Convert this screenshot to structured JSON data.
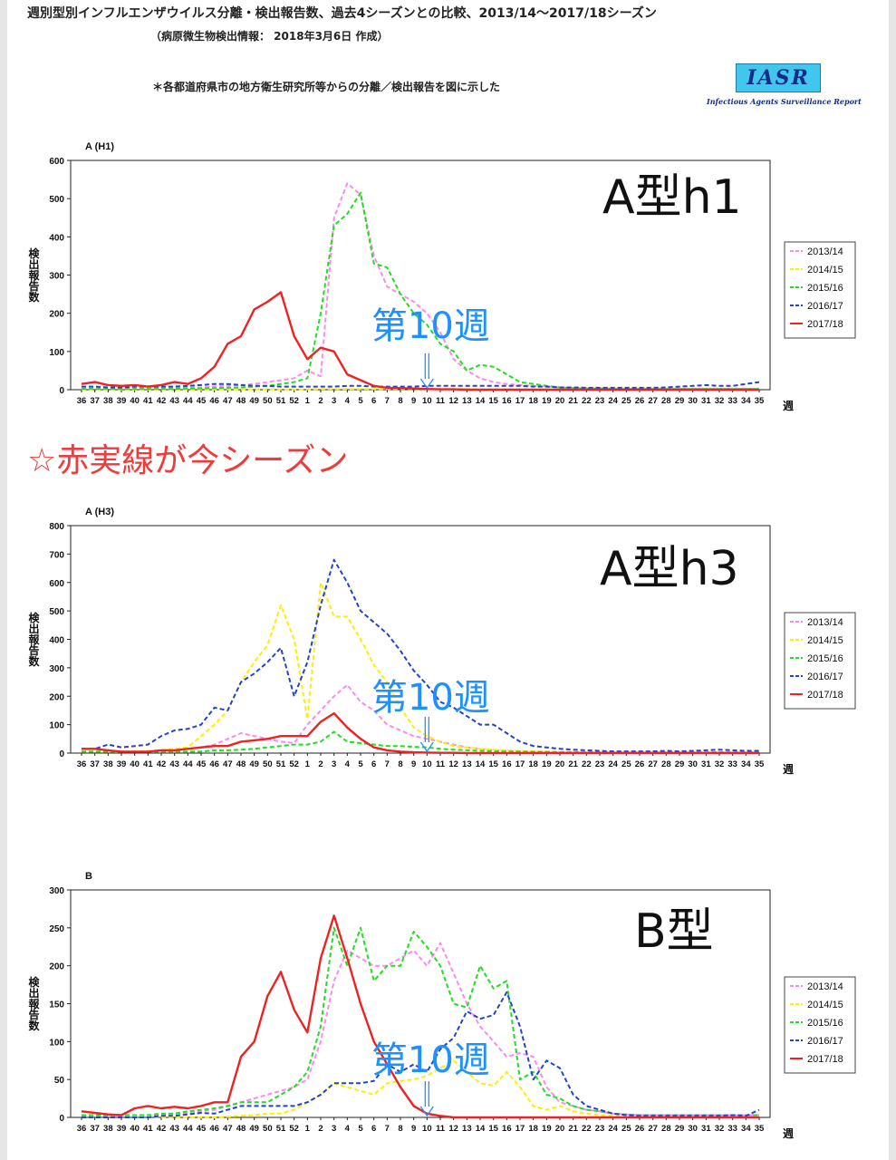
{
  "header": {
    "title": "週別型別インフルエンザウイルス分離・検出報告数、過去4シーズンとの比較、2013/14～2017/18シーズン",
    "subtitle": "（病原微生物検出情報： 2018年3月6日 作成）",
    "note": "＊各都道府県市の地方衛生研究所等からの分離／検出報告を図に示した"
  },
  "logo": {
    "text": "IASR",
    "caption": "Infectious Agents Surveillance Report"
  },
  "annotation": "☆赤実線が今シーズン",
  "colors": {
    "2013/14": "#ff88ee",
    "2014/15": "#ffee00",
    "2015/16": "#22dd22",
    "2016/17": "#2244cc",
    "2017/18": "#ee2222",
    "overlay_blue": "#1e90ff",
    "overlay_black": "#111111"
  },
  "chart_data": [
    {
      "type": "line",
      "title": "A (H1)",
      "ylabel": "検出報告数",
      "xlabel": "週",
      "overlay_label": "A型h1",
      "marker_label": "第10週",
      "marker_week": "10",
      "ylim": [
        0,
        600
      ],
      "yticks": [
        0,
        100,
        200,
        300,
        400,
        500,
        600
      ],
      "x": [
        "36",
        "37",
        "38",
        "39",
        "40",
        "41",
        "42",
        "43",
        "44",
        "45",
        "46",
        "47",
        "48",
        "49",
        "50",
        "51",
        "52",
        "1",
        "2",
        "3",
        "4",
        "5",
        "6",
        "7",
        "8",
        "9",
        "10",
        "11",
        "12",
        "13",
        "14",
        "15",
        "16",
        "17",
        "18",
        "19",
        "20",
        "21",
        "22",
        "23",
        "24",
        "25",
        "26",
        "27",
        "28",
        "29",
        "30",
        "31",
        "32",
        "33",
        "34",
        "35"
      ],
      "series": [
        {
          "name": "2013/14",
          "values": [
            3,
            3,
            3,
            3,
            3,
            3,
            4,
            4,
            5,
            6,
            8,
            10,
            12,
            15,
            20,
            25,
            30,
            50,
            35,
            450,
            540,
            510,
            350,
            270,
            250,
            230,
            200,
            150,
            80,
            50,
            30,
            20,
            15,
            12,
            10,
            8,
            6,
            5,
            4,
            4,
            3,
            3,
            3,
            3,
            3,
            3,
            3,
            3,
            3,
            3,
            3,
            3
          ]
        },
        {
          "name": "2014/15",
          "values": [
            1,
            1,
            1,
            1,
            1,
            1,
            1,
            1,
            1,
            1,
            1,
            1,
            1,
            1,
            1,
            1,
            1,
            1,
            2,
            2,
            2,
            2,
            2,
            2,
            2,
            2,
            2,
            2,
            2,
            2,
            1,
            1,
            1,
            1,
            1,
            1,
            1,
            1,
            1,
            1,
            1,
            1,
            1,
            1,
            1,
            1,
            1,
            1,
            1,
            1,
            1,
            1
          ]
        },
        {
          "name": "2015/16",
          "values": [
            2,
            2,
            2,
            2,
            2,
            2,
            2,
            2,
            3,
            3,
            4,
            5,
            6,
            8,
            10,
            15,
            20,
            30,
            200,
            430,
            460,
            515,
            330,
            320,
            250,
            200,
            170,
            120,
            100,
            50,
            65,
            60,
            40,
            20,
            15,
            10,
            6,
            4,
            3,
            3,
            2,
            2,
            2,
            2,
            2,
            2,
            2,
            2,
            2,
            2,
            2,
            2
          ]
        },
        {
          "name": "2016/17",
          "values": [
            8,
            8,
            6,
            6,
            8,
            8,
            8,
            8,
            10,
            12,
            15,
            15,
            12,
            10,
            10,
            8,
            8,
            8,
            8,
            8,
            10,
            10,
            8,
            8,
            8,
            8,
            10,
            10,
            10,
            10,
            10,
            10,
            10,
            10,
            8,
            8,
            6,
            6,
            5,
            5,
            5,
            5,
            5,
            5,
            6,
            8,
            10,
            12,
            10,
            10,
            15,
            20
          ]
        },
        {
          "name": "2017/18",
          "values": [
            15,
            20,
            12,
            10,
            12,
            8,
            12,
            20,
            15,
            30,
            60,
            120,
            140,
            210,
            230,
            255,
            140,
            80,
            110,
            100,
            40,
            25,
            10,
            5,
            4,
            3,
            2,
            1,
            1,
            0,
            0,
            0,
            0,
            0,
            0,
            0,
            0,
            0,
            0,
            0,
            0,
            0,
            0,
            0,
            0,
            0,
            0,
            0,
            0,
            0,
            0,
            0
          ]
        }
      ]
    },
    {
      "type": "line",
      "title": "A (H3)",
      "ylabel": "検出報告数",
      "xlabel": "週",
      "overlay_label": "A型h3",
      "marker_label": "第10週",
      "marker_week": "10",
      "ylim": [
        0,
        800
      ],
      "yticks": [
        0,
        100,
        200,
        300,
        400,
        500,
        600,
        700,
        800
      ],
      "x": [
        "36",
        "37",
        "38",
        "39",
        "40",
        "41",
        "42",
        "43",
        "44",
        "45",
        "46",
        "47",
        "48",
        "49",
        "50",
        "51",
        "52",
        "1",
        "2",
        "3",
        "4",
        "5",
        "6",
        "7",
        "8",
        "9",
        "10",
        "11",
        "12",
        "13",
        "14",
        "15",
        "16",
        "17",
        "18",
        "19",
        "20",
        "21",
        "22",
        "23",
        "24",
        "25",
        "26",
        "27",
        "28",
        "29",
        "30",
        "31",
        "32",
        "33",
        "34",
        "35"
      ],
      "series": [
        {
          "name": "2013/14",
          "values": [
            5,
            5,
            5,
            5,
            5,
            5,
            8,
            10,
            15,
            20,
            30,
            50,
            70,
            60,
            50,
            40,
            35,
            100,
            150,
            200,
            240,
            180,
            150,
            100,
            80,
            60,
            50,
            40,
            30,
            20,
            15,
            10,
            8,
            6,
            5,
            5,
            4,
            4,
            3,
            3,
            3,
            3,
            3,
            3,
            3,
            3,
            3,
            3,
            3,
            3,
            3,
            3
          ]
        },
        {
          "name": "2014/15",
          "values": [
            5,
            5,
            5,
            5,
            5,
            8,
            10,
            15,
            20,
            60,
            100,
            150,
            250,
            320,
            380,
            520,
            400,
            120,
            600,
            480,
            480,
            400,
            310,
            250,
            160,
            90,
            60,
            40,
            25,
            20,
            15,
            12,
            10,
            8,
            6,
            5,
            4,
            4,
            3,
            3,
            3,
            3,
            3,
            3,
            3,
            3,
            3,
            3,
            3,
            3,
            3,
            3
          ]
        },
        {
          "name": "2015/16",
          "values": [
            5,
            5,
            5,
            5,
            5,
            5,
            5,
            5,
            5,
            5,
            10,
            10,
            12,
            15,
            20,
            25,
            30,
            30,
            40,
            75,
            40,
            35,
            30,
            25,
            25,
            22,
            20,
            15,
            12,
            10,
            8,
            6,
            5,
            5,
            4,
            4,
            3,
            3,
            3,
            3,
            3,
            3,
            3,
            3,
            3,
            3,
            3,
            3,
            3,
            3,
            3,
            3
          ]
        },
        {
          "name": "2016/17",
          "values": [
            15,
            15,
            30,
            20,
            25,
            30,
            60,
            80,
            85,
            100,
            160,
            150,
            250,
            280,
            320,
            370,
            200,
            320,
            520,
            680,
            600,
            500,
            460,
            420,
            360,
            290,
            240,
            180,
            160,
            130,
            100,
            100,
            70,
            40,
            25,
            20,
            15,
            12,
            10,
            8,
            6,
            6,
            6,
            6,
            8,
            6,
            8,
            10,
            12,
            10,
            8,
            8
          ]
        },
        {
          "name": "2017/18",
          "values": [
            15,
            15,
            10,
            5,
            5,
            5,
            10,
            10,
            15,
            20,
            25,
            25,
            40,
            45,
            50,
            60,
            60,
            60,
            110,
            140,
            90,
            50,
            20,
            10,
            5,
            3,
            2,
            1,
            1,
            0,
            0,
            0,
            0,
            0,
            0,
            0,
            0,
            0,
            0,
            0,
            0,
            0,
            0,
            0,
            0,
            0,
            0,
            0,
            0,
            0,
            0,
            0
          ]
        }
      ]
    },
    {
      "type": "line",
      "title": "B",
      "ylabel": "検出報告数",
      "xlabel": "週",
      "overlay_label": "B型",
      "marker_label": "第10週",
      "marker_week": "10",
      "ylim": [
        0,
        300
      ],
      "yticks": [
        0,
        50,
        100,
        150,
        200,
        250,
        300
      ],
      "x": [
        "36",
        "37",
        "38",
        "39",
        "40",
        "41",
        "42",
        "43",
        "44",
        "45",
        "46",
        "47",
        "48",
        "49",
        "50",
        "51",
        "52",
        "1",
        "2",
        "3",
        "4",
        "5",
        "6",
        "7",
        "8",
        "9",
        "10",
        "11",
        "12",
        "13",
        "14",
        "15",
        "16",
        "17",
        "18",
        "19",
        "20",
        "21",
        "22",
        "23",
        "24",
        "25",
        "26",
        "27",
        "28",
        "29",
        "30",
        "31",
        "32",
        "33",
        "34",
        "35"
      ],
      "series": [
        {
          "name": "2013/14",
          "values": [
            2,
            2,
            2,
            2,
            3,
            3,
            4,
            5,
            6,
            8,
            10,
            15,
            20,
            25,
            30,
            35,
            40,
            50,
            100,
            180,
            220,
            210,
            200,
            200,
            210,
            220,
            200,
            230,
            190,
            150,
            120,
            100,
            80,
            85,
            80,
            40,
            20,
            15,
            10,
            8,
            5,
            4,
            3,
            3,
            3,
            3,
            3,
            3,
            3,
            3,
            3,
            3
          ]
        },
        {
          "name": "2014/15",
          "values": [
            0,
            0,
            0,
            0,
            0,
            0,
            0,
            0,
            0,
            0,
            0,
            1,
            2,
            3,
            5,
            5,
            10,
            20,
            30,
            45,
            40,
            35,
            30,
            45,
            48,
            50,
            55,
            65,
            75,
            60,
            45,
            42,
            60,
            40,
            15,
            10,
            15,
            8,
            5,
            3,
            2,
            1,
            1,
            1,
            0,
            0,
            0,
            0,
            0,
            0,
            0,
            0
          ]
        },
        {
          "name": "2015/16",
          "values": [
            3,
            3,
            3,
            3,
            3,
            3,
            5,
            5,
            8,
            10,
            12,
            15,
            20,
            20,
            20,
            30,
            40,
            60,
            120,
            250,
            200,
            250,
            180,
            200,
            200,
            245,
            225,
            200,
            150,
            145,
            200,
            170,
            180,
            50,
            60,
            30,
            25,
            15,
            10,
            8,
            5,
            4,
            3,
            3,
            3,
            3,
            3,
            3,
            3,
            3,
            3,
            3
          ]
        },
        {
          "name": "2016/17",
          "values": [
            0,
            0,
            0,
            0,
            0,
            0,
            2,
            2,
            4,
            6,
            5,
            10,
            15,
            15,
            15,
            15,
            15,
            20,
            30,
            45,
            45,
            45,
            48,
            70,
            60,
            70,
            60,
            90,
            105,
            140,
            130,
            135,
            165,
            120,
            50,
            75,
            65,
            30,
            15,
            10,
            5,
            3,
            2,
            2,
            2,
            2,
            2,
            2,
            2,
            3,
            2,
            10
          ]
        },
        {
          "name": "2017/18",
          "values": [
            8,
            6,
            4,
            3,
            12,
            15,
            12,
            14,
            12,
            15,
            20,
            20,
            80,
            100,
            160,
            192,
            142,
            112,
            210,
            266,
            210,
            150,
            100,
            70,
            40,
            15,
            5,
            2,
            0,
            0,
            0,
            0,
            0,
            0,
            0,
            0,
            0,
            0,
            0,
            0,
            0,
            0,
            0,
            0,
            0,
            0,
            0,
            0,
            0,
            0,
            0,
            0
          ]
        }
      ]
    }
  ]
}
